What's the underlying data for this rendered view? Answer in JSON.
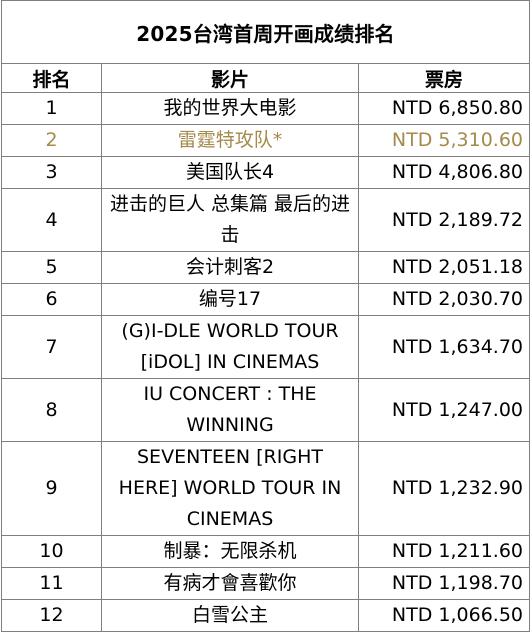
{
  "table": {
    "title": "2025台湾首周开画成绩排名",
    "headers": {
      "rank": "排名",
      "film": "影片",
      "box_office": "票房"
    },
    "rows": [
      {
        "rank": "1",
        "film": "我的世界大电影",
        "box_office": "NTD 6,850.80"
      },
      {
        "rank": "2",
        "film": "雷霆特攻队*",
        "box_office": "NTD 5,310.60"
      },
      {
        "rank": "3",
        "film": "美国队长4",
        "box_office": "NTD 4,806.80"
      },
      {
        "rank": "4",
        "film": "进击的巨人 总集篇 最后的进击",
        "box_office": "NTD 2,189.72"
      },
      {
        "rank": "5",
        "film": "会计刺客2",
        "box_office": "NTD 2,051.18"
      },
      {
        "rank": "6",
        "film": "编号17",
        "box_office": "NTD 2,030.70"
      },
      {
        "rank": "7",
        "film": "(G)I-DLE WORLD TOUR [iDOL] IN CINEMAS",
        "box_office": "NTD 1,634.70"
      },
      {
        "rank": "8",
        "film": "IU CONCERT : THE WINNING",
        "box_office": "NTD 1,247.00"
      },
      {
        "rank": "9",
        "film": "SEVENTEEN [RIGHT HERE] WORLD TOUR IN CINEMAS",
        "box_office": "NTD 1,232.90"
      },
      {
        "rank": "10",
        "film": "制暴：无限杀机",
        "box_office": "NTD 1,211.60"
      },
      {
        "rank": "11",
        "film": "有病才會喜歡你",
        "box_office": "NTD 1,198.70"
      },
      {
        "rank": "12",
        "film": "白雪公主",
        "box_office": "NTD 1,066.50"
      }
    ],
    "highlight_color": "#a58a4a"
  }
}
